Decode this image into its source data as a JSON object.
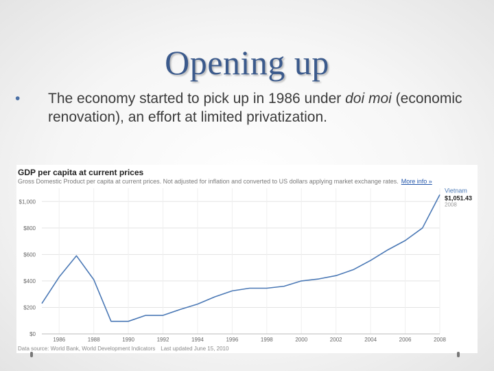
{
  "slide": {
    "title": "Opening up",
    "bullet": {
      "marker": "•",
      "text_before": "The economy started to pick up in 1986 under ",
      "text_italic": "doi moi",
      "text_after": " (economic renovation), an effort at limited privatization."
    }
  },
  "chart_data": {
    "type": "line",
    "title": "GDP per capita at current prices",
    "subtitle": "Gross Domestic Product per capita at current prices. Not adjusted for inflation and converted to US dollars applying market exchange rates.",
    "more_info_label": "More info »",
    "source": "Data source: World Bank, World Development Indicators",
    "updated": "Last updated June 15, 2010",
    "x": [
      1985,
      1986,
      1987,
      1988,
      1989,
      1990,
      1991,
      1992,
      1993,
      1994,
      1995,
      1996,
      1997,
      1998,
      1999,
      2000,
      2001,
      2002,
      2003,
      2004,
      2005,
      2006,
      2007,
      2008
    ],
    "series": [
      {
        "name": "Vietnam",
        "color": "#4a78b5",
        "values": [
          230,
          430,
          590,
          410,
          95,
          95,
          140,
          140,
          185,
          225,
          280,
          325,
          345,
          345,
          360,
          400,
          415,
          440,
          485,
          555,
          635,
          705,
          800,
          1051.43
        ]
      }
    ],
    "endpoint_label": {
      "name": "Vietnam",
      "value": "$1,051.43",
      "year": "2008"
    },
    "ylim": [
      0,
      1100
    ],
    "yticks": [
      0,
      200,
      400,
      600,
      800,
      1000
    ],
    "ytick_labels": [
      "$0",
      "$200",
      "$400",
      "$600",
      "$800",
      "$1,000"
    ],
    "xticks": [
      1986,
      1988,
      1990,
      1992,
      1994,
      1996,
      1998,
      2000,
      2002,
      2004,
      2006,
      2008
    ],
    "xlim": [
      1985,
      2008
    ],
    "grid": true
  }
}
